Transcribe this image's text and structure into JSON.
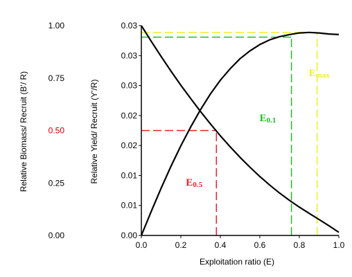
{
  "chart_data": {
    "type": "line",
    "xlabel": "Exploitation ratio (E)",
    "ylabel": "Relative Yield/ Recruit (Y'/R)",
    "ylabel_secondary": "Relative Biomass/ Recruit (B'/ R)",
    "xlim": [
      0,
      1
    ],
    "ylim": [
      0,
      0.04
    ],
    "ylim_secondary": [
      0,
      1
    ],
    "x_ticks": [
      "0.0",
      "0.2",
      "0.4",
      "0.6",
      "0.8",
      "1.0"
    ],
    "y_ticks": [
      "0.00",
      "0.01",
      "0.01",
      "0.02",
      "0.02",
      "0.03",
      "0.03",
      "0.03"
    ],
    "y_ticks_secondary": [
      "0.00",
      "0.25",
      "0.50",
      "0.75",
      "1.00"
    ],
    "y_ticks_secondary_colors": [
      "#000000",
      "#000000",
      "#cc0000",
      "#000000",
      "#000000"
    ],
    "grid": false,
    "series": [
      {
        "axis": "left",
        "color": "#000000",
        "x": [
          0,
          0.05,
          0.1,
          0.15,
          0.2,
          0.25,
          0.3,
          0.35,
          0.4,
          0.45,
          0.5,
          0.55,
          0.6,
          0.65,
          0.7,
          0.75,
          0.8,
          0.85,
          0.9,
          0.95,
          1.0
        ],
        "y": [
          0,
          0.0046,
          0.009,
          0.0132,
          0.0171,
          0.0207,
          0.024,
          0.027,
          0.0296,
          0.0318,
          0.0337,
          0.0352,
          0.0364,
          0.0373,
          0.0379,
          0.0383,
          0.0386,
          0.0387,
          0.0386,
          0.0384,
          0.0383
        ]
      },
      {
        "axis": "right",
        "color": "#000000",
        "x": [
          0,
          0.05,
          0.1,
          0.15,
          0.2,
          0.25,
          0.3,
          0.35,
          0.4,
          0.45,
          0.5,
          0.55,
          0.6,
          0.65,
          0.7,
          0.75,
          0.8,
          0.85,
          0.9,
          0.95,
          1.0
        ],
        "y": [
          1.0,
          0.925,
          0.853,
          0.783,
          0.716,
          0.652,
          0.59,
          0.531,
          0.475,
          0.422,
          0.372,
          0.325,
          0.281,
          0.24,
          0.202,
          0.167,
          0.135,
          0.105,
          0.076,
          0.046,
          0.015
        ]
      }
    ],
    "reference_lines": [
      {
        "label": "E",
        "sub": "0.5",
        "color": "#e8202a",
        "x": 0.38,
        "y_secondary": 0.5
      },
      {
        "label": "E",
        "sub": "0.1",
        "color": "#22bb22",
        "x": 0.76,
        "y": 0.0378
      },
      {
        "label": "E",
        "sub": "max",
        "color": "#eeee22",
        "x": 0.89,
        "y": 0.0387
      }
    ],
    "colors": {
      "axis": "#000000",
      "curve": "#000000",
      "e05": "#e8202a",
      "e01": "#22bb22",
      "emax": "#eeee22"
    }
  }
}
